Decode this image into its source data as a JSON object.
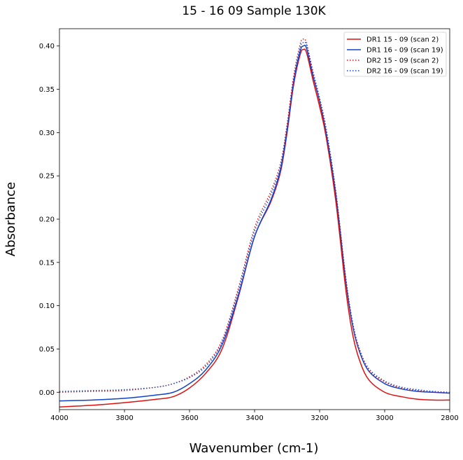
{
  "chart_data": {
    "type": "line",
    "title": "15 - 16 09 Sample 130K",
    "xlabel": "Wavenumber (cm-1)",
    "ylabel": "Absorbance",
    "xlim": [
      4000,
      2800
    ],
    "ylim": [
      -0.02,
      0.42
    ],
    "x_ticks": [
      "4000",
      "3800",
      "3600",
      "3400",
      "3200",
      "3000",
      "2800"
    ],
    "y_ticks": [
      "0.00",
      "0.05",
      "0.10",
      "0.15",
      "0.20",
      "0.25",
      "0.30",
      "0.35",
      "0.40"
    ],
    "grid": false,
    "legend_position": "top-right",
    "x": [
      4000,
      3900,
      3800,
      3700,
      3650,
      3600,
      3550,
      3500,
      3450,
      3400,
      3350,
      3320,
      3300,
      3280,
      3260,
      3250,
      3240,
      3220,
      3200,
      3180,
      3150,
      3120,
      3100,
      3080,
      3050,
      3000,
      2950,
      2900,
      2850,
      2800
    ],
    "series": [
      {
        "name": "DR1 15 - 09 (scan 2)",
        "color": "#dd1111",
        "style": "solid",
        "values": [
          -0.017,
          -0.015,
          -0.012,
          -0.008,
          -0.005,
          0.005,
          0.022,
          0.05,
          0.11,
          0.18,
          0.22,
          0.255,
          0.3,
          0.355,
          0.39,
          0.396,
          0.392,
          0.36,
          0.33,
          0.295,
          0.22,
          0.12,
          0.07,
          0.04,
          0.015,
          0.0,
          -0.005,
          -0.008,
          -0.009,
          -0.009
        ]
      },
      {
        "name": "DR1 16 - 09 (scan 19)",
        "color": "#1144cc",
        "style": "solid",
        "values": [
          -0.01,
          -0.009,
          -0.007,
          -0.003,
          0.0,
          0.01,
          0.026,
          0.055,
          0.112,
          0.18,
          0.222,
          0.258,
          0.303,
          0.358,
          0.394,
          0.4,
          0.397,
          0.365,
          0.336,
          0.3,
          0.228,
          0.13,
          0.08,
          0.05,
          0.025,
          0.01,
          0.004,
          0.001,
          0.0,
          -0.001
        ]
      },
      {
        "name": "DR2 15 - 09 (scan 2)",
        "color": "#dd1111",
        "style": "dotted",
        "values": [
          0.0,
          0.001,
          0.002,
          0.006,
          0.01,
          0.018,
          0.032,
          0.06,
          0.12,
          0.19,
          0.232,
          0.265,
          0.31,
          0.365,
          0.402,
          0.408,
          0.403,
          0.368,
          0.335,
          0.298,
          0.226,
          0.128,
          0.08,
          0.05,
          0.026,
          0.012,
          0.005,
          0.002,
          0.0,
          -0.001
        ]
      },
      {
        "name": "DR2 16 - 09 (scan 19)",
        "color": "#1144cc",
        "style": "dotted",
        "values": [
          0.001,
          0.002,
          0.003,
          0.006,
          0.01,
          0.017,
          0.03,
          0.058,
          0.117,
          0.186,
          0.228,
          0.261,
          0.306,
          0.361,
          0.398,
          0.404,
          0.401,
          0.37,
          0.34,
          0.305,
          0.232,
          0.134,
          0.084,
          0.053,
          0.028,
          0.013,
          0.006,
          0.003,
          0.001,
          0.0
        ]
      }
    ]
  }
}
